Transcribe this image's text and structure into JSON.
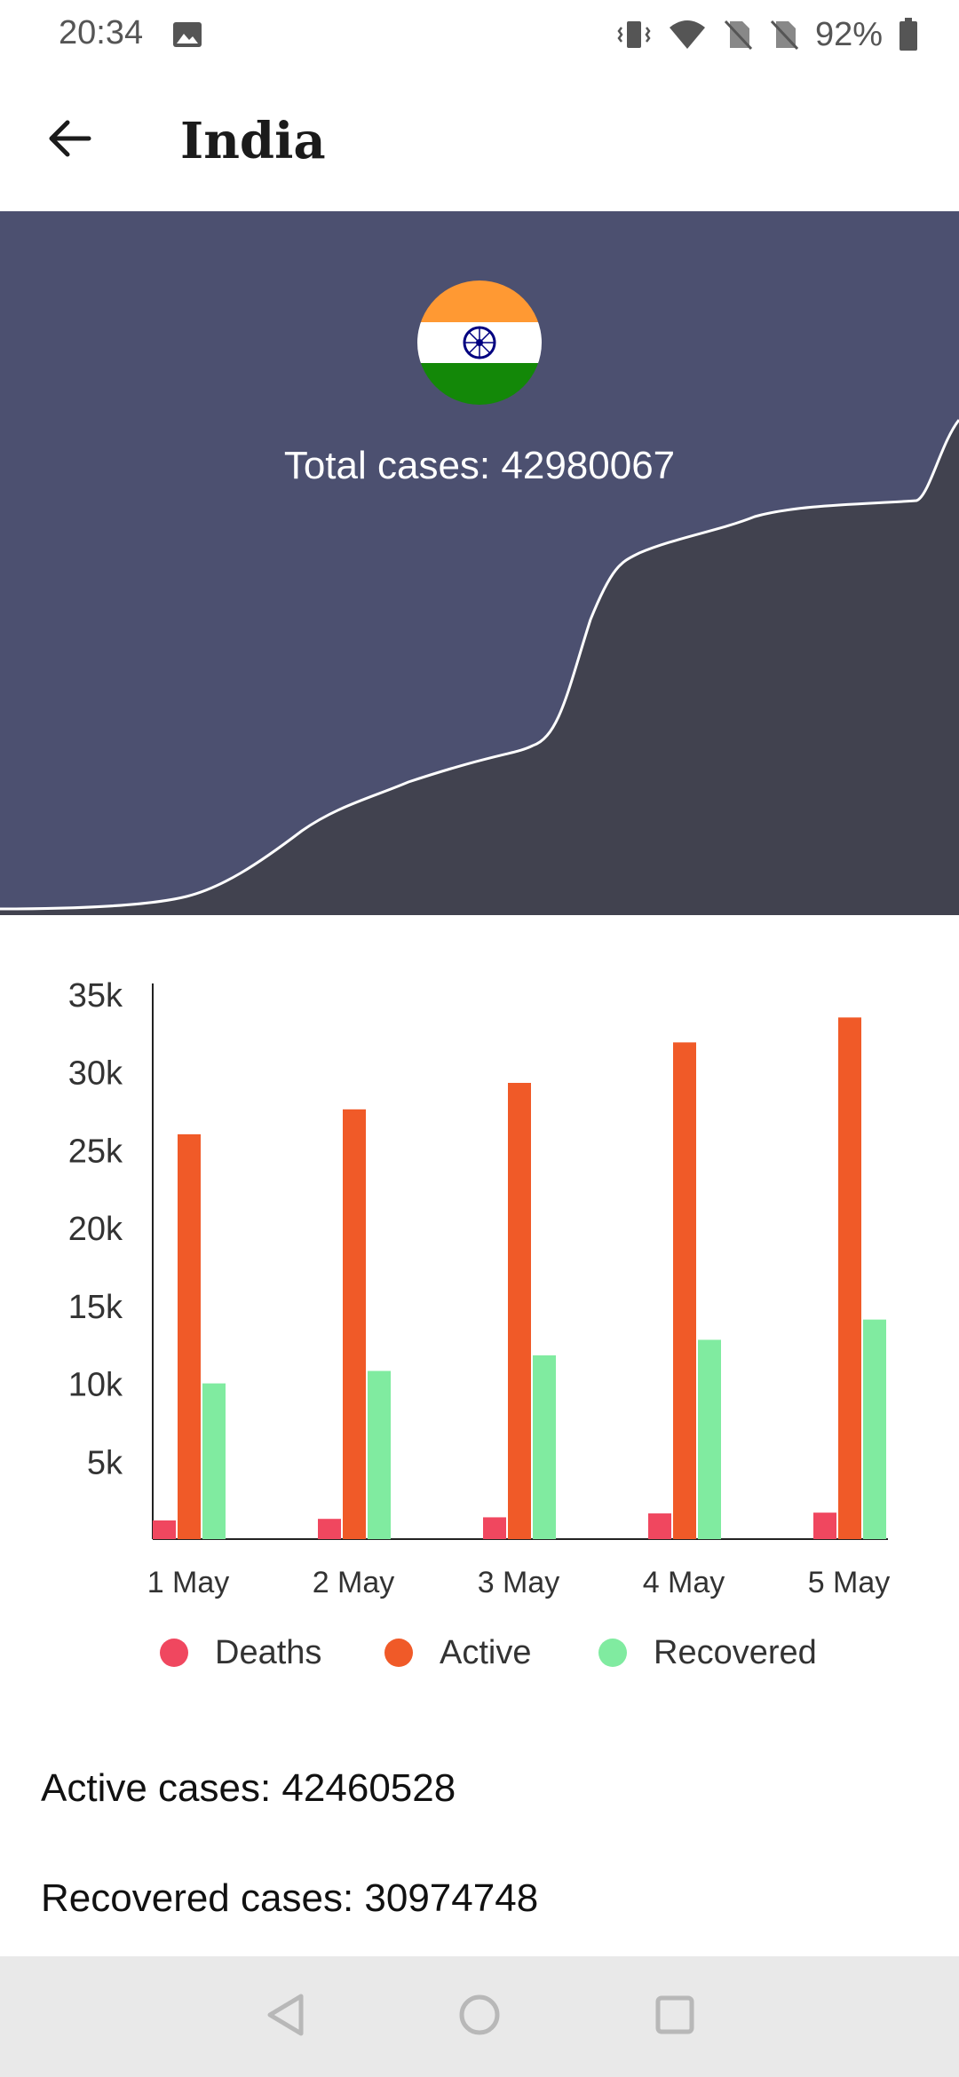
{
  "status_bar": {
    "time": "20:34",
    "battery": "92%",
    "icons": [
      "image-icon",
      "vibrate-icon",
      "wifi-icon",
      "no-sim-icon",
      "no-sim-icon",
      "battery-icon"
    ]
  },
  "app_bar": {
    "title": "India",
    "back_icon": "arrow-left-icon"
  },
  "hero": {
    "total_cases": "Total cases: 42980067",
    "flag": "india-flag",
    "colors": {
      "background": "#4c5070",
      "fill": "#41424f",
      "line": "#ffffff"
    }
  },
  "chart_data": {
    "type": "bar",
    "categories": [
      "1 May",
      "2 May",
      "3 May",
      "4 May",
      "5 May"
    ],
    "y_ticks": [
      "35k",
      "30k",
      "25k",
      "20k",
      "15k",
      "10k",
      "5k"
    ],
    "ylim": [
      0,
      35000
    ],
    "series": [
      {
        "name": "Deaths",
        "color": "#f0475f",
        "values": [
          1200,
          1300,
          1400,
          1650,
          1700
        ]
      },
      {
        "name": "Active",
        "color": "#f05a28",
        "values": [
          26000,
          27600,
          29300,
          31900,
          33500
        ]
      },
      {
        "name": "Recovered",
        "color": "#80eba0",
        "values": [
          10000,
          10800,
          11800,
          12800,
          14100
        ]
      }
    ],
    "legend_placement": "bottom",
    "grid": false
  },
  "stats": {
    "active": "Active cases: 42460528",
    "recovered": "Recovered cases: 30974748"
  },
  "nav_bar": {
    "icons": [
      "back-triangle-icon",
      "home-circle-icon",
      "recents-square-icon"
    ]
  }
}
